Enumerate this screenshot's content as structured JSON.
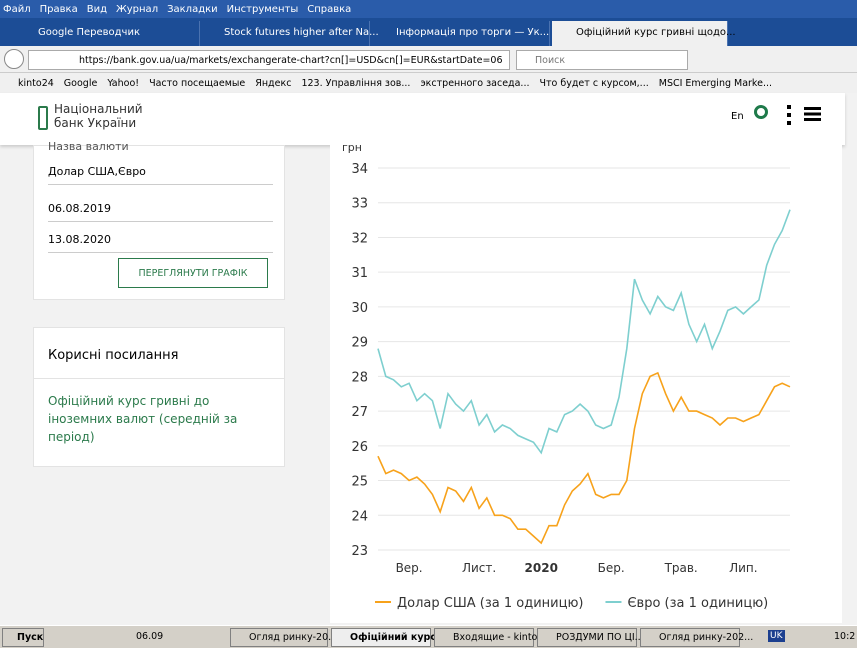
{
  "browser": {
    "menu": [
      "Файл",
      "Правка",
      "Вид",
      "Журнал",
      "Закладки",
      "Инструменты",
      "Справка"
    ],
    "tabs": [
      "Google Переводчик",
      "Stock futures higher after Na...",
      "Інформація про торги — Ук...",
      "Офіційний курс гривні щодо..."
    ],
    "url": "https://bank.gov.ua/ua/markets/exchangerate-chart?cn[]=USD&cn[]=EUR&startDate=06",
    "search": "Поиск",
    "bookmarks": [
      "kinto24",
      "Google",
      "Yahoo!",
      "Часто посещаемые",
      "Яндекс",
      "123. Управління зов...",
      "экстренного заседа...",
      "Что будет с курсом,...",
      "MSCI Emerging Marke..."
    ]
  },
  "site": {
    "logo": [
      "Національний",
      "банк України"
    ],
    "lang": "En"
  },
  "form": {
    "currency_label": "Назва валюти",
    "currency": "Долар США,Євро",
    "start_date": "06.08.2019",
    "end_date": "13.08.2020",
    "button": "ПЕРЕГЛЯНУТИ ГРАФІК"
  },
  "links": {
    "title": "Корисні посилання",
    "item": "Офіційний курс гривні до іноземних валют (середній за період)"
  },
  "chart_data": {
    "type": "line",
    "y_label": "грн",
    "categories": [
      null,
      null,
      null,
      null,
      "Вер.",
      null,
      null,
      null,
      null,
      null,
      null,
      null,
      null,
      "Лист.",
      null,
      null,
      null,
      null,
      null,
      null,
      null,
      "2020",
      null,
      null,
      null,
      null,
      null,
      null,
      null,
      null,
      "Бер.",
      null,
      null,
      null,
      null,
      null,
      null,
      null,
      null,
      "Трав.",
      null,
      null,
      null,
      null,
      null,
      null,
      null,
      "Лип.",
      null,
      null,
      null,
      null,
      null,
      null
    ],
    "series": [
      {
        "name": "Долар США (за 1 одиницю)",
        "color": "#f7a21b",
        "values": [
          25.7,
          25.2,
          25.3,
          25.2,
          25.0,
          25.1,
          24.9,
          24.6,
          24.1,
          24.8,
          24.7,
          24.4,
          24.8,
          24.2,
          24.5,
          24.0,
          24.0,
          23.9,
          23.6,
          23.6,
          23.4,
          23.2,
          23.7,
          23.7,
          24.3,
          24.7,
          24.9,
          25.2,
          24.6,
          24.5,
          24.6,
          24.6,
          25.0,
          26.5,
          27.5,
          28.0,
          28.1,
          27.5,
          27.0,
          27.4,
          27.0,
          27.0,
          26.9,
          26.8,
          26.6,
          26.8,
          26.8,
          26.7,
          26.8,
          26.9,
          27.3,
          27.7,
          27.8,
          27.7
        ]
      },
      {
        "name": "Євро (за 1 одиницю)",
        "color": "#7ecfcf",
        "values": [
          28.8,
          28.0,
          27.9,
          27.7,
          27.8,
          27.3,
          27.5,
          27.3,
          26.5,
          27.5,
          27.2,
          27.0,
          27.3,
          26.6,
          26.9,
          26.4,
          26.6,
          26.5,
          26.3,
          26.2,
          26.1,
          25.8,
          26.5,
          26.4,
          26.9,
          27.0,
          27.2,
          27.0,
          26.6,
          26.5,
          26.6,
          27.4,
          28.8,
          30.8,
          30.2,
          29.8,
          30.3,
          30.0,
          29.9,
          30.4,
          29.5,
          29.0,
          29.5,
          28.8,
          29.3,
          29.9,
          30.0,
          29.8,
          30.0,
          30.2,
          31.2,
          31.8,
          32.2,
          32.8
        ]
      }
    ],
    "ylim": [
      23,
      34
    ],
    "yticks": [
      23,
      24,
      25,
      26,
      27,
      28,
      29,
      30,
      31,
      32,
      33,
      34
    ],
    "grid": true,
    "legend": "bottom"
  },
  "taskbar": {
    "start": "Пуск",
    "items": [
      "06.09",
      "Огляд ринку-20...",
      "Офіційний курс ...",
      "Входящие - kinto...",
      "РОЗДУМИ ПО ЦІ...",
      "Огляд ринку-202..."
    ],
    "lang": "UK",
    "clock": "10:2"
  }
}
